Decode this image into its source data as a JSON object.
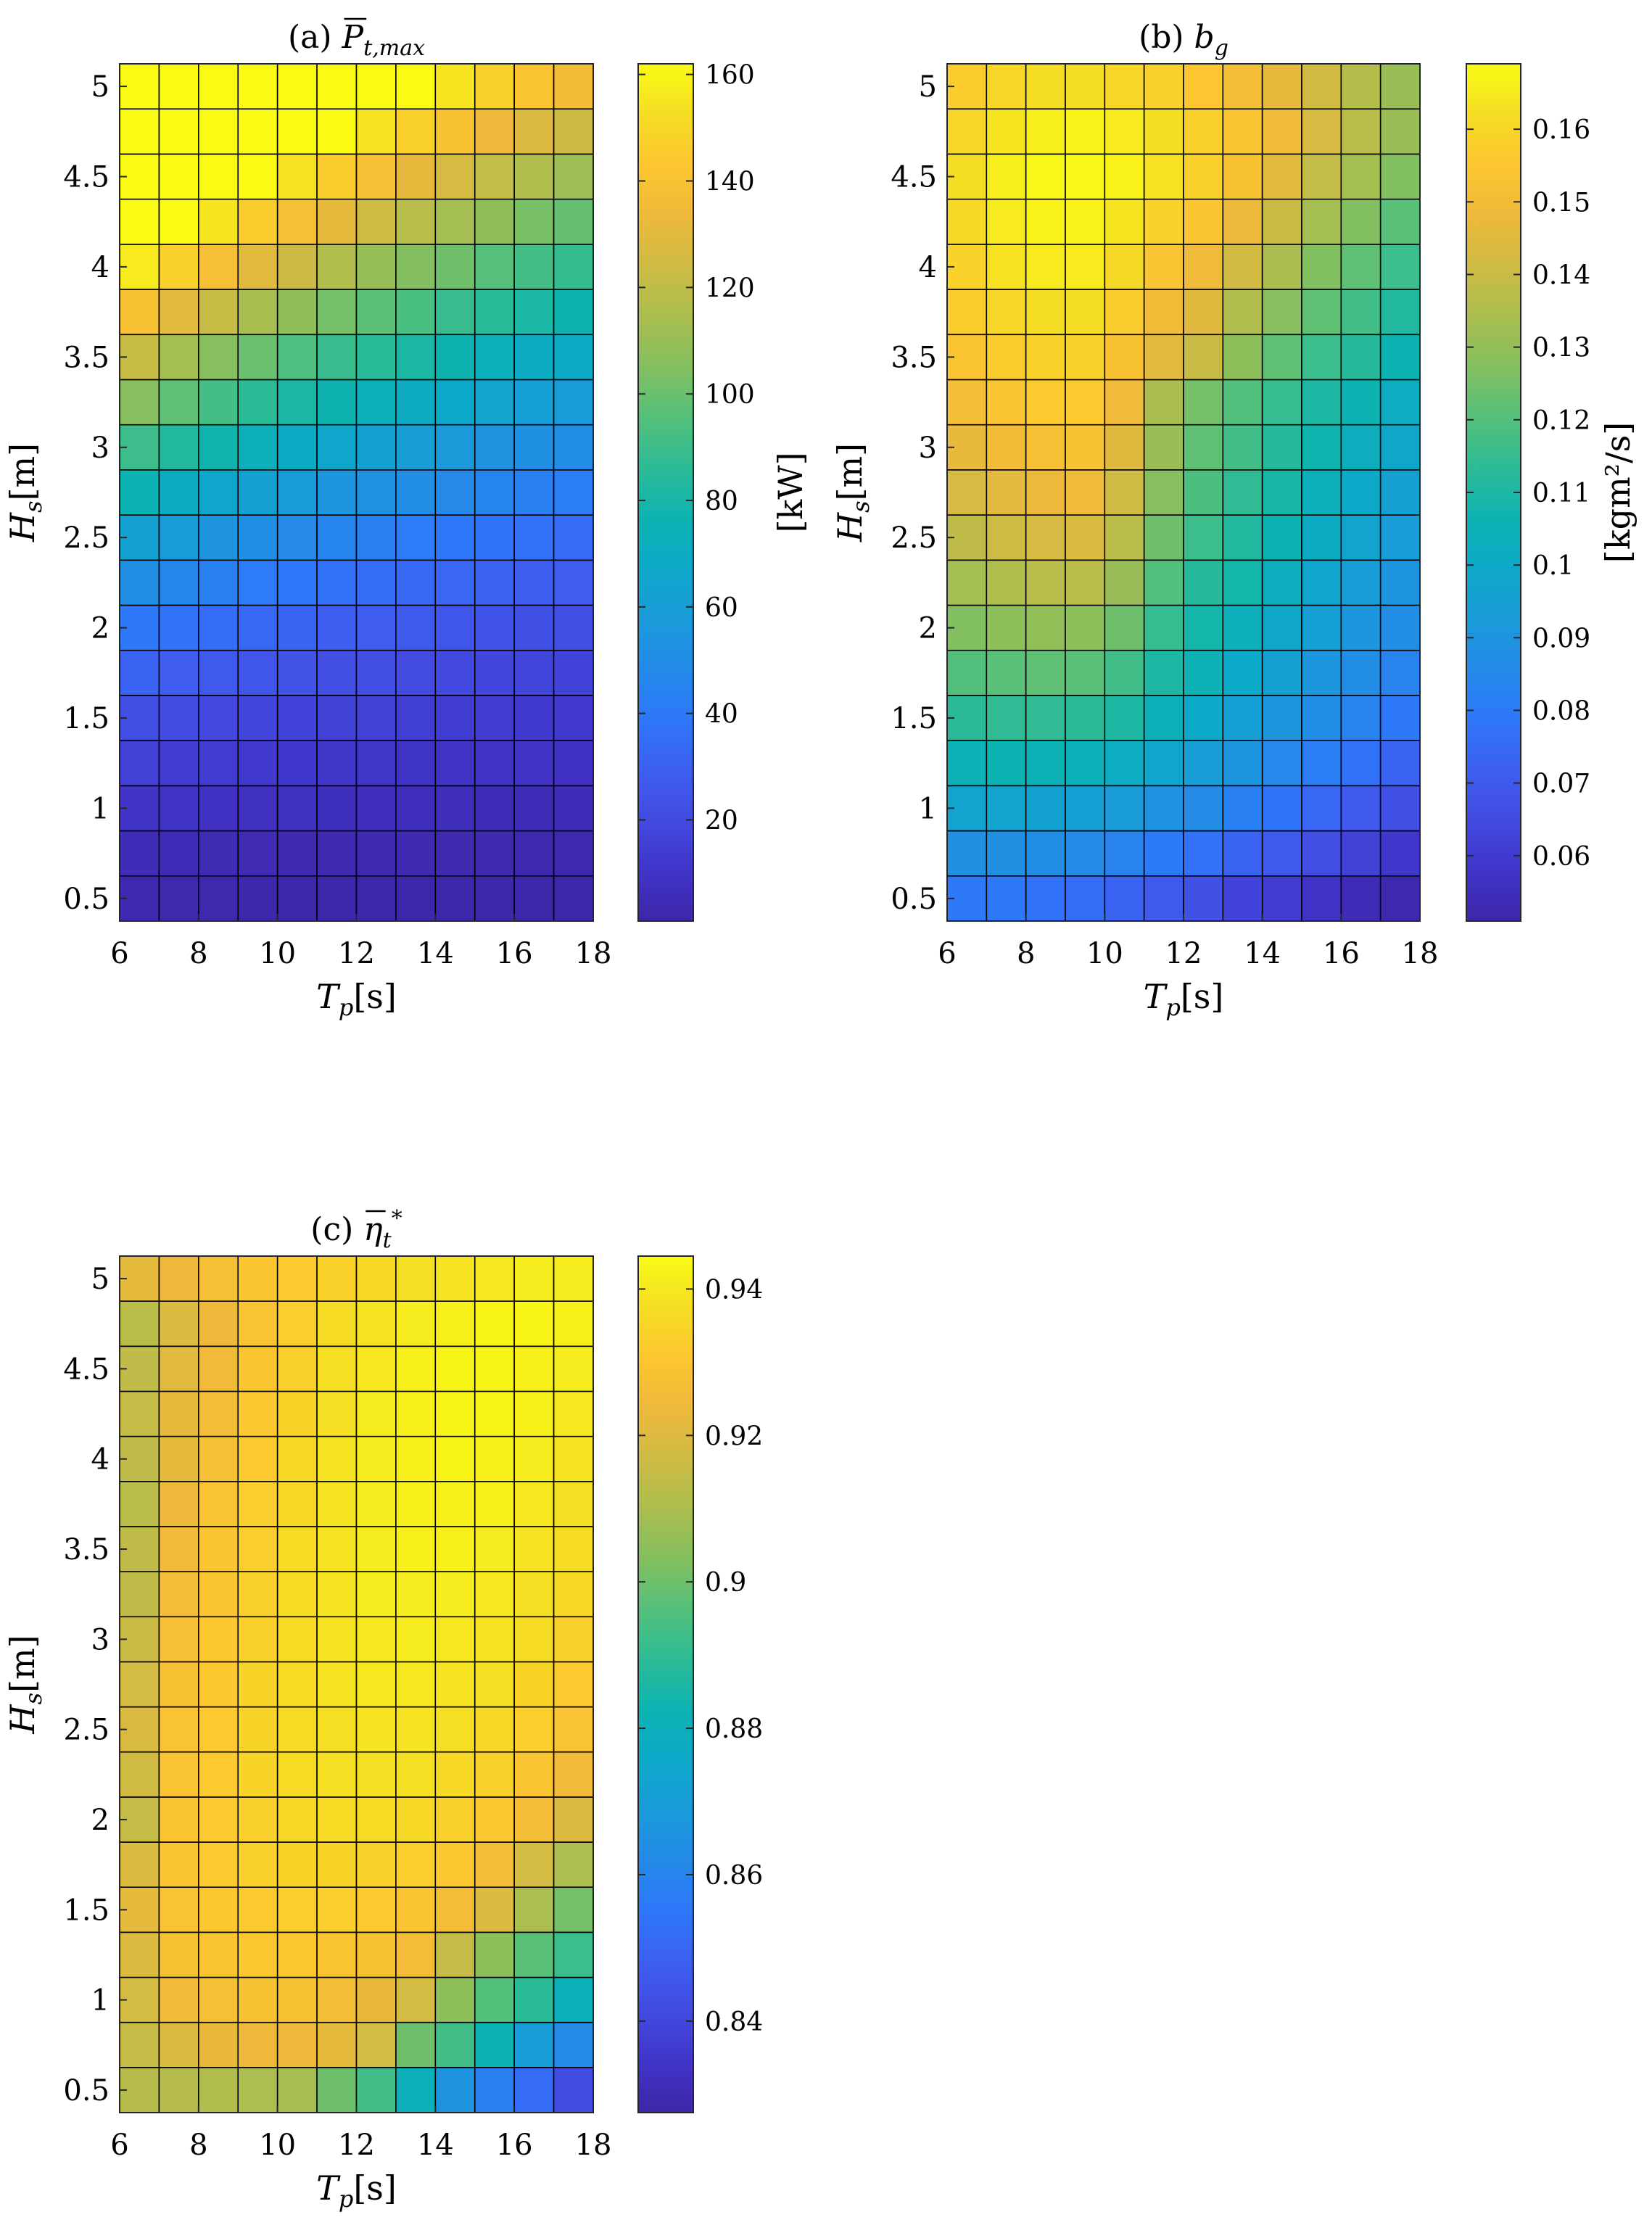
{
  "colormap": [
    "#3e26a8",
    "#4034c8",
    "#434ae0",
    "#3d5ff2",
    "#2e77fb",
    "#248ae8",
    "#1a9bd9",
    "#0da8c9",
    "#0db3b1",
    "#2dbb96",
    "#54c07a",
    "#84bf5f",
    "#acbe4f",
    "#cfbb44",
    "#eeb93b",
    "#fdc630",
    "#f5dd24",
    "#f9fb15"
  ],
  "x_ticks": [
    "6",
    "8",
    "10",
    "12",
    "14",
    "16",
    "18"
  ],
  "y_ticks": [
    "0.5",
    "1",
    "1.5",
    "2",
    "2.5",
    "3",
    "3.5",
    "4",
    "4.5",
    "5"
  ],
  "xlabel_base": "T",
  "xlabel_sub": "p",
  "xlabel_unit": "[s]",
  "ylabel_base": "H",
  "ylabel_sub": "s",
  "ylabel_unit": "[m]",
  "chart_data": [
    {
      "type": "heatmap",
      "title_prefix": "(a)",
      "title_base": "P",
      "title_sub": "t,max",
      "title_accent": "bar",
      "xlabel": "T_p [s]",
      "ylabel": "H_s [m]",
      "x": [
        6,
        7,
        8,
        9,
        10,
        11,
        12,
        13,
        14,
        15,
        16,
        17
      ],
      "y": [
        0.5,
        0.75,
        1,
        1.25,
        1.5,
        1.75,
        2,
        2.25,
        2.5,
        2.75,
        3,
        3.25,
        3.5,
        3.75,
        4,
        4.25,
        4.5,
        4.75,
        5
      ],
      "xlim": [
        6,
        18
      ],
      "ylim": [
        0.375,
        5.125
      ],
      "colorbar": {
        "label": "[kW]",
        "min": 1,
        "max": 162,
        "ticks": [
          "20",
          "40",
          "60",
          "80",
          "100",
          "120",
          "140",
          "160"
        ]
      },
      "values": [
        [
          2.5,
          2.3,
          2.1,
          2.0,
          1.9,
          1.8,
          1.7,
          1.6,
          1.6,
          1.5,
          1.4,
          1.4
        ],
        [
          5.6,
          5.2,
          4.9,
          4.6,
          4.3,
          4.1,
          3.9,
          3.7,
          3.5,
          3.4,
          3.2,
          3.1
        ],
        [
          10,
          9.2,
          8.6,
          8.1,
          7.7,
          7.3,
          6.9,
          6.6,
          6.3,
          6.0,
          5.7,
          5.5
        ],
        [
          16,
          14,
          13.5,
          12.7,
          12,
          11.4,
          10.8,
          10.3,
          9.8,
          9.3,
          8.9,
          8.6
        ],
        [
          22,
          21,
          19.5,
          18.3,
          17.3,
          16.4,
          15.6,
          14.8,
          14.1,
          13.5,
          12.9,
          12.4
        ],
        [
          31,
          28,
          26.5,
          25,
          23.6,
          22.3,
          21.2,
          20.2,
          19.2,
          18.4,
          17.6,
          16.9
        ],
        [
          40,
          37,
          35,
          33,
          31,
          29,
          28,
          26.5,
          25,
          24,
          23,
          22
        ],
        [
          51,
          47,
          44,
          41,
          39,
          37,
          35,
          33.5,
          32,
          30.5,
          29,
          28
        ],
        [
          62,
          58,
          54,
          51,
          48,
          46,
          44,
          41.5,
          39.5,
          37.5,
          36,
          34.5
        ],
        [
          76,
          70,
          66,
          62,
          58,
          55,
          53,
          50,
          48,
          46,
          44,
          42
        ],
        [
          90,
          83,
          78,
          73,
          69,
          66,
          62,
          60,
          57,
          54,
          52,
          50
        ],
        [
          106,
          98,
          92,
          86,
          81,
          77,
          73,
          70,
          67,
          64,
          61,
          58
        ],
        [
          122,
          113,
          106,
          100,
          94,
          89,
          85,
          81,
          77,
          74,
          70,
          68
        ],
        [
          140,
          130,
          122,
          114,
          108,
          102,
          97,
          93,
          89,
          85,
          81,
          77
        ],
        [
          157,
          147,
          138,
          130,
          123,
          116,
          110,
          105,
          101,
          96,
          92,
          88
        ],
        [
          162,
          162,
          155,
          146,
          138,
          131,
          124,
          118,
          113,
          108,
          103,
          99
        ],
        [
          162,
          162,
          162,
          162,
          154,
          146,
          139,
          132,
          126,
          121,
          116,
          111
        ],
        [
          162,
          162,
          162,
          162,
          162,
          162,
          154,
          147,
          140,
          134,
          128,
          123
        ],
        [
          162,
          162,
          162,
          162,
          162,
          162,
          162,
          162,
          155,
          148,
          142,
          136
        ]
      ]
    },
    {
      "type": "heatmap",
      "title_prefix": "(b)",
      "title_base": "b",
      "title_sub": "g",
      "title_accent": "",
      "xlabel": "T_p [s]",
      "ylabel": "H_s [m]",
      "x": [
        6,
        7,
        8,
        9,
        10,
        11,
        12,
        13,
        14,
        15,
        16,
        17
      ],
      "y": [
        0.5,
        0.75,
        1,
        1.25,
        1.5,
        1.75,
        2,
        2.25,
        2.5,
        2.75,
        3,
        3.25,
        3.5,
        3.75,
        4,
        4.25,
        4.5,
        4.75,
        5
      ],
      "xlim": [
        6,
        18
      ],
      "ylim": [
        0.375,
        5.125
      ],
      "colorbar": {
        "label": "[kgm²/s]",
        "min": 0.051,
        "max": 0.169,
        "ticks": [
          "0.06",
          "0.07",
          "0.08",
          "0.09",
          "0.1",
          "0.11",
          "0.12",
          "0.13",
          "0.14",
          "0.15",
          "0.16"
        ]
      },
      "values": [
        [
          0.079,
          0.079,
          0.077,
          0.076,
          0.073,
          0.07,
          0.067,
          0.063,
          0.06,
          0.057,
          0.054,
          0.052
        ],
        [
          0.088,
          0.088,
          0.087,
          0.086,
          0.083,
          0.08,
          0.077,
          0.073,
          0.07,
          0.066,
          0.062,
          0.059
        ],
        [
          0.097,
          0.097,
          0.096,
          0.095,
          0.093,
          0.089,
          0.086,
          0.082,
          0.078,
          0.074,
          0.07,
          0.067
        ],
        [
          0.105,
          0.106,
          0.105,
          0.104,
          0.102,
          0.098,
          0.094,
          0.09,
          0.085,
          0.081,
          0.077,
          0.073
        ],
        [
          0.113,
          0.114,
          0.114,
          0.113,
          0.11,
          0.104,
          0.1,
          0.095,
          0.091,
          0.087,
          0.083,
          0.079
        ],
        [
          0.12,
          0.121,
          0.122,
          0.121,
          0.117,
          0.11,
          0.105,
          0.1,
          0.096,
          0.091,
          0.087,
          0.083
        ],
        [
          0.127,
          0.129,
          0.13,
          0.129,
          0.124,
          0.115,
          0.108,
          0.104,
          0.099,
          0.095,
          0.091,
          0.087
        ],
        [
          0.133,
          0.135,
          0.137,
          0.137,
          0.131,
          0.12,
          0.112,
          0.108,
          0.103,
          0.098,
          0.094,
          0.09
        ],
        [
          0.138,
          0.141,
          0.143,
          0.144,
          0.137,
          0.124,
          0.116,
          0.111,
          0.106,
          0.101,
          0.097,
          0.093
        ],
        [
          0.143,
          0.146,
          0.148,
          0.149,
          0.141,
          0.128,
          0.119,
          0.114,
          0.109,
          0.104,
          0.1,
          0.096
        ],
        [
          0.147,
          0.15,
          0.152,
          0.153,
          0.145,
          0.131,
          0.122,
          0.117,
          0.112,
          0.107,
          0.103,
          0.099
        ],
        [
          0.151,
          0.154,
          0.156,
          0.156,
          0.149,
          0.134,
          0.125,
          0.12,
          0.115,
          0.11,
          0.106,
          0.102
        ],
        [
          0.154,
          0.157,
          0.159,
          0.159,
          0.153,
          0.146,
          0.14,
          0.129,
          0.122,
          0.116,
          0.112,
          0.106
        ],
        [
          0.157,
          0.16,
          0.162,
          0.162,
          0.157,
          0.15,
          0.145,
          0.135,
          0.128,
          0.122,
          0.117,
          0.111
        ],
        [
          0.159,
          0.163,
          0.165,
          0.165,
          0.161,
          0.154,
          0.149,
          0.142,
          0.134,
          0.127,
          0.122,
          0.116
        ],
        [
          0.161,
          0.165,
          0.167,
          0.167,
          0.164,
          0.159,
          0.154,
          0.148,
          0.14,
          0.133,
          0.127,
          0.121
        ],
        [
          0.162,
          0.166,
          0.168,
          0.168,
          0.167,
          0.163,
          0.158,
          0.153,
          0.146,
          0.139,
          0.133,
          0.127
        ],
        [
          0.16,
          0.164,
          0.166,
          0.167,
          0.165,
          0.162,
          0.158,
          0.154,
          0.149,
          0.143,
          0.137,
          0.131
        ],
        [
          0.157,
          0.16,
          0.162,
          0.162,
          0.16,
          0.158,
          0.155,
          0.151,
          0.147,
          0.142,
          0.136,
          0.131
        ]
      ]
    },
    {
      "type": "heatmap",
      "title_prefix": "(c)",
      "title_base": "η",
      "title_sub": "t",
      "title_sup": "*",
      "title_accent": "bar",
      "xlabel": "T_p [s]",
      "ylabel": "H_s [m]",
      "x": [
        6,
        7,
        8,
        9,
        10,
        11,
        12,
        13,
        14,
        15,
        16,
        17
      ],
      "y": [
        0.5,
        0.75,
        1,
        1.25,
        1.5,
        1.75,
        2,
        2.25,
        2.5,
        2.75,
        3,
        3.25,
        3.5,
        3.75,
        4,
        4.25,
        4.5,
        4.75,
        5
      ],
      "xlim": [
        6,
        18
      ],
      "ylim": [
        0.375,
        5.125
      ],
      "colorbar": {
        "label": "",
        "min": 0.8275,
        "max": 0.9445,
        "ticks": [
          "0.84",
          "0.86",
          "0.88",
          "0.9",
          "0.92",
          "0.94"
        ]
      },
      "values": [
        [
          0.912,
          0.912,
          0.911,
          0.91,
          0.909,
          0.9,
          0.893,
          0.88,
          0.866,
          0.858,
          0.852,
          0.842
        ],
        [
          0.915,
          0.92,
          0.923,
          0.924,
          0.924,
          0.922,
          0.918,
          0.9,
          0.893,
          0.882,
          0.87,
          0.862
        ],
        [
          0.918,
          0.925,
          0.927,
          0.928,
          0.928,
          0.926,
          0.923,
          0.918,
          0.905,
          0.896,
          0.889,
          0.88
        ],
        [
          0.92,
          0.928,
          0.93,
          0.931,
          0.931,
          0.93,
          0.928,
          0.926,
          0.915,
          0.905,
          0.897,
          0.892
        ],
        [
          0.922,
          0.929,
          0.931,
          0.932,
          0.933,
          0.933,
          0.932,
          0.93,
          0.926,
          0.92,
          0.91,
          0.901
        ],
        [
          0.92,
          0.93,
          0.932,
          0.934,
          0.935,
          0.935,
          0.934,
          0.933,
          0.931,
          0.926,
          0.918,
          0.91
        ],
        [
          0.915,
          0.93,
          0.932,
          0.934,
          0.936,
          0.937,
          0.937,
          0.936,
          0.934,
          0.931,
          0.926,
          0.92
        ],
        [
          0.917,
          0.929,
          0.932,
          0.935,
          0.937,
          0.938,
          0.938,
          0.938,
          0.936,
          0.934,
          0.93,
          0.925
        ],
        [
          0.919,
          0.929,
          0.932,
          0.935,
          0.937,
          0.938,
          0.939,
          0.939,
          0.938,
          0.936,
          0.933,
          0.929
        ],
        [
          0.918,
          0.928,
          0.931,
          0.935,
          0.937,
          0.939,
          0.94,
          0.94,
          0.939,
          0.938,
          0.935,
          0.932
        ],
        [
          0.916,
          0.927,
          0.931,
          0.934,
          0.937,
          0.939,
          0.94,
          0.941,
          0.94,
          0.939,
          0.937,
          0.934
        ],
        [
          0.914,
          0.926,
          0.93,
          0.934,
          0.937,
          0.939,
          0.941,
          0.941,
          0.941,
          0.94,
          0.938,
          0.936
        ],
        [
          0.914,
          0.925,
          0.93,
          0.933,
          0.937,
          0.939,
          0.941,
          0.942,
          0.942,
          0.941,
          0.939,
          0.937
        ],
        [
          0.913,
          0.924,
          0.929,
          0.933,
          0.936,
          0.939,
          0.941,
          0.942,
          0.942,
          0.942,
          0.94,
          0.938
        ],
        [
          0.914,
          0.922,
          0.927,
          0.932,
          0.936,
          0.939,
          0.941,
          0.942,
          0.943,
          0.942,
          0.941,
          0.939
        ],
        [
          0.915,
          0.922,
          0.926,
          0.931,
          0.935,
          0.938,
          0.941,
          0.942,
          0.943,
          0.943,
          0.942,
          0.94
        ],
        [
          0.914,
          0.921,
          0.925,
          0.93,
          0.934,
          0.938,
          0.94,
          0.942,
          0.943,
          0.943,
          0.942,
          0.941
        ],
        [
          0.913,
          0.92,
          0.924,
          0.929,
          0.933,
          0.937,
          0.939,
          0.941,
          0.942,
          0.943,
          0.943,
          0.942
        ],
        [
          0.922,
          0.924,
          0.927,
          0.93,
          0.932,
          0.934,
          0.936,
          0.938,
          0.939,
          0.94,
          0.941,
          0.941
        ]
      ]
    }
  ]
}
